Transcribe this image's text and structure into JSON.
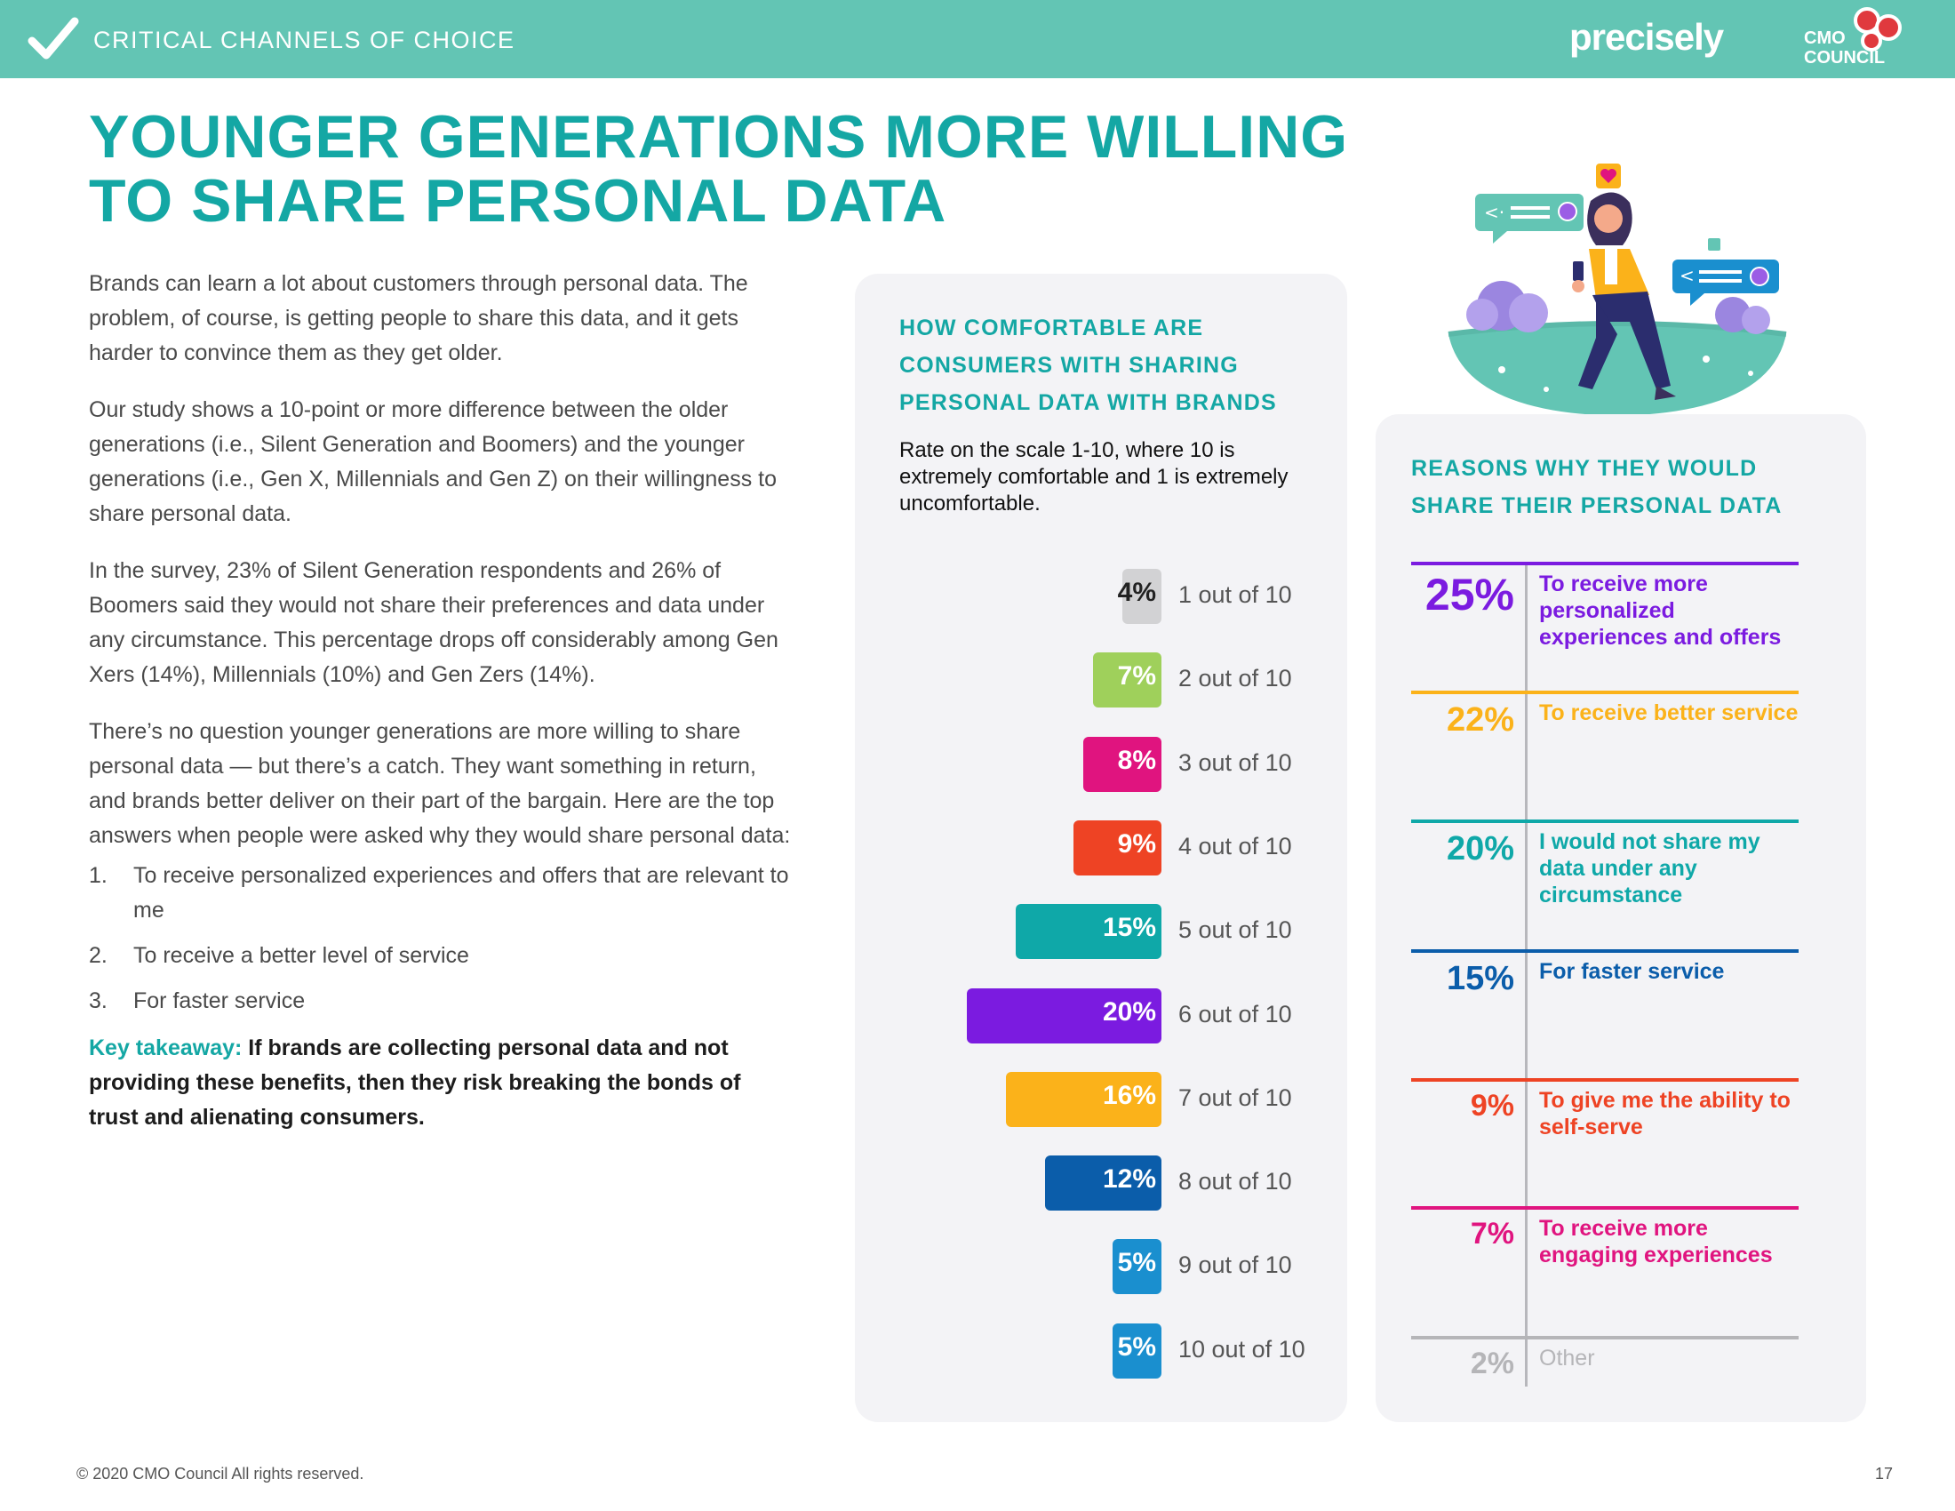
{
  "header": {
    "section": "CRITICAL CHANNELS OF CHOICE",
    "brand": "precisely",
    "logo_line1": "CMO",
    "logo_line2": "COUNCIL",
    "logo_mark": "CMO"
  },
  "headline": {
    "line1": "YOUNGER GENERATIONS MORE WILLING",
    "line2": "TO SHARE PERSONAL DATA"
  },
  "body": {
    "p1": "Brands can learn a lot about customers through personal data. The problem, of course, is getting people to share this data, and it gets harder to convince them as they get older.",
    "p2": "Our study shows a 10-point or more difference between the older generations (i.e., Silent Generation and Boomers) and the younger generations (i.e., Gen X, Millennials and Gen Z) on their willingness to share personal data.",
    "p3": "In the survey, 23% of Silent Generation respondents and 26% of Boomers said they would not share their preferences and data under any circumstance. This percentage drops off considerably among Gen Xers (14%), Millennials (10%) and Gen Zers (14%).",
    "p4": "There’s no question younger generations are more willing to share personal data — but there’s a catch. They want something in return, and brands better deliver on their part of the bargain. Here are the top answers when people were asked why they would share personal data:",
    "list": [
      {
        "num": "1.",
        "text": "To receive personalized experiences and offers that are relevant to me"
      },
      {
        "num": "2.",
        "text": "To receive a better level of service"
      },
      {
        "num": "3.",
        "text": "For faster service"
      }
    ],
    "takeaway_label": "Key takeaway:",
    "takeaway_text": " If brands are collecting personal data and not providing these benefits, then they risk breaking the bonds of trust and alienating consumers."
  },
  "comfort_panel": {
    "title": "HOW COMFORTABLE ARE CONSUMERS WITH SHARING PERSONAL DATA WITH BRANDS",
    "subtitle": "Rate on the scale 1-10, where 10 is extremely comfortable and 1 is extremely uncomfortable."
  },
  "reasons_panel": {
    "title": "REASONS WHY THEY WOULD SHARE THEIR PERSONAL DATA"
  },
  "chart_data": [
    {
      "type": "bar",
      "title": "HOW COMFORTABLE ARE CONSUMERS WITH SHARING PERSONAL DATA WITH BRANDS",
      "categories": [
        "1 out of 10",
        "2 out of 10",
        "3 out of 10",
        "4 out of 10",
        "5 out of 10",
        "6 out of 10",
        "7 out of 10",
        "8 out of 10",
        "9 out of 10",
        "10 out of 10"
      ],
      "values": [
        4,
        7,
        8,
        9,
        15,
        20,
        16,
        12,
        5,
        5
      ],
      "value_labels": [
        "4%",
        "7%",
        "8%",
        "9%",
        "15%",
        "20%",
        "16%",
        "12%",
        "5%",
        "5%"
      ],
      "colors": [
        "#d2d2d4",
        "#9fd05b",
        "#e0147f",
        "#ee4324",
        "#0fa8a8",
        "#7b1be0",
        "#fbb21a",
        "#0b5daa",
        "#1a8fcf",
        "#1a8fcf"
      ],
      "value_text_colors": [
        "#222222",
        "#ffffff",
        "#ffffff",
        "#ffffff",
        "#ffffff",
        "#ffffff",
        "#ffffff",
        "#ffffff",
        "#ffffff",
        "#ffffff"
      ],
      "orientation": "horizontal",
      "unit": "%"
    },
    {
      "type": "table",
      "title": "REASONS WHY THEY WOULD SHARE THEIR PERSONAL DATA",
      "rows": [
        {
          "value": 25,
          "label_pct": "25%",
          "text": "To receive more personalized experiences and offers",
          "color": "#7b1be0"
        },
        {
          "value": 22,
          "label_pct": "22%",
          "text": "To receive better service",
          "color": "#fbb21a"
        },
        {
          "value": 20,
          "label_pct": "20%",
          "text": "I would not share my data under any circumstance",
          "color": "#0fa8a8"
        },
        {
          "value": 15,
          "label_pct": "15%",
          "text": "For faster service",
          "color": "#0b5daa"
        },
        {
          "value": 9,
          "label_pct": "9%",
          "text": "To give me the ability to self-serve",
          "color": "#ee4324"
        },
        {
          "value": 7,
          "label_pct": "7%",
          "text": "To receive more engaging experiences",
          "color": "#e0147f"
        },
        {
          "value": 2,
          "label_pct": "2%",
          "text": "Other",
          "color": "#b5b5b8"
        }
      ]
    }
  ],
  "footer": {
    "copyright": "© 2020 CMO Council  All rights reserved.",
    "page": "17"
  },
  "icons": {
    "check": "check-icon",
    "illustration": "woman-with-phone-illustration"
  }
}
